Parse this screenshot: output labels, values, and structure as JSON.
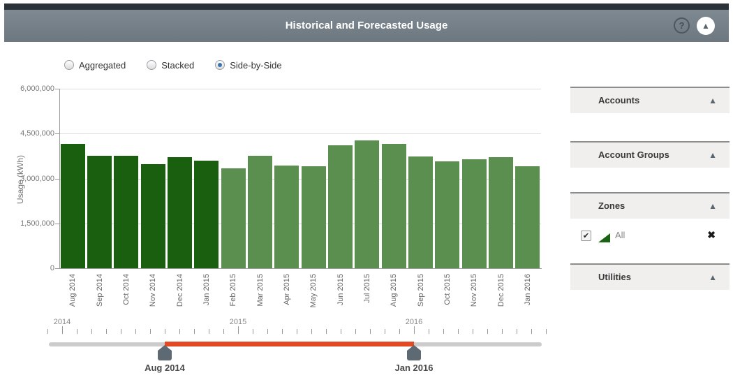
{
  "header": {
    "title": "Historical and Forecasted Usage",
    "help_icon": "?",
    "collapse_icon": "▲"
  },
  "view_options": {
    "aggregated": {
      "label": "Aggregated",
      "selected": false
    },
    "stacked": {
      "label": "Stacked",
      "selected": false
    },
    "side_by_side": {
      "label": "Side-by-Side",
      "selected": true
    }
  },
  "chart_data": {
    "type": "bar",
    "title": "Historical and Forecasted Usage",
    "xlabel": "",
    "ylabel": "Usage (kWh)",
    "ylim": [
      0,
      6000000
    ],
    "ytick_values": [
      0,
      1500000,
      3000000,
      4500000,
      6000000
    ],
    "ytick_labels": [
      "0",
      "1,500,000",
      "3,000,000",
      "4,500,000",
      "6,000,000"
    ],
    "grid": true,
    "colors": {
      "historical": "#1a5e10",
      "forecasted": "#5b8f4f"
    },
    "categories": [
      "Aug 2014",
      "Sep 2014",
      "Oct 2014",
      "Nov 2014",
      "Dec 2014",
      "Jan 2015",
      "Feb 2015",
      "Mar 2015",
      "Apr 2015",
      "May 2015",
      "Jun 2015",
      "Jul 2015",
      "Aug 2015",
      "Sep 2015",
      "Oct 2015",
      "Nov 2015",
      "Dec 2015",
      "Jan 2016"
    ],
    "bars": [
      {
        "label": "Aug 2014",
        "value": 4150000,
        "segment": "historical"
      },
      {
        "label": "Sep 2014",
        "value": 3750000,
        "segment": "historical"
      },
      {
        "label": "Oct 2014",
        "value": 3750000,
        "segment": "historical"
      },
      {
        "label": "Nov 2014",
        "value": 3480000,
        "segment": "historical"
      },
      {
        "label": "Dec 2014",
        "value": 3720000,
        "segment": "historical"
      },
      {
        "label": "Jan 2015",
        "value": 3600000,
        "segment": "historical"
      },
      {
        "label": "Feb 2015",
        "value": 3350000,
        "segment": "forecasted"
      },
      {
        "label": "Mar 2015",
        "value": 3750000,
        "segment": "forecasted"
      },
      {
        "label": "Apr 2015",
        "value": 3430000,
        "segment": "forecasted"
      },
      {
        "label": "May 2015",
        "value": 3400000,
        "segment": "forecasted"
      },
      {
        "label": "Jun 2015",
        "value": 4100000,
        "segment": "forecasted"
      },
      {
        "label": "Jul 2015",
        "value": 4270000,
        "segment": "forecasted"
      },
      {
        "label": "Aug 2015",
        "value": 4150000,
        "segment": "forecasted"
      },
      {
        "label": "Sep 2015",
        "value": 3740000,
        "segment": "forecasted"
      },
      {
        "label": "Oct 2015",
        "value": 3580000,
        "segment": "forecasted"
      },
      {
        "label": "Nov 2015",
        "value": 3650000,
        "segment": "forecasted"
      },
      {
        "label": "Dec 2015",
        "value": 3720000,
        "segment": "forecasted"
      },
      {
        "label": "Jan 2016",
        "value": 3400000,
        "segment": "forecasted"
      }
    ]
  },
  "timeline": {
    "years": [
      "2014",
      "2015",
      "2016"
    ],
    "range_start_label": "Aug 2014",
    "range_end_label": "Jan 2016",
    "selected_color": "#e24a23"
  },
  "sidebar": {
    "panels": [
      {
        "title": "Accounts",
        "collapse_icon": "▲"
      },
      {
        "title": "Account Groups",
        "collapse_icon": "▲"
      },
      {
        "title": "Zones",
        "collapse_icon": "▲"
      },
      {
        "title": "Utilities",
        "collapse_icon": "▲"
      }
    ],
    "zone_item": {
      "label": "All",
      "checked": true,
      "check_icon": "✔",
      "remove_icon": "✖"
    }
  }
}
